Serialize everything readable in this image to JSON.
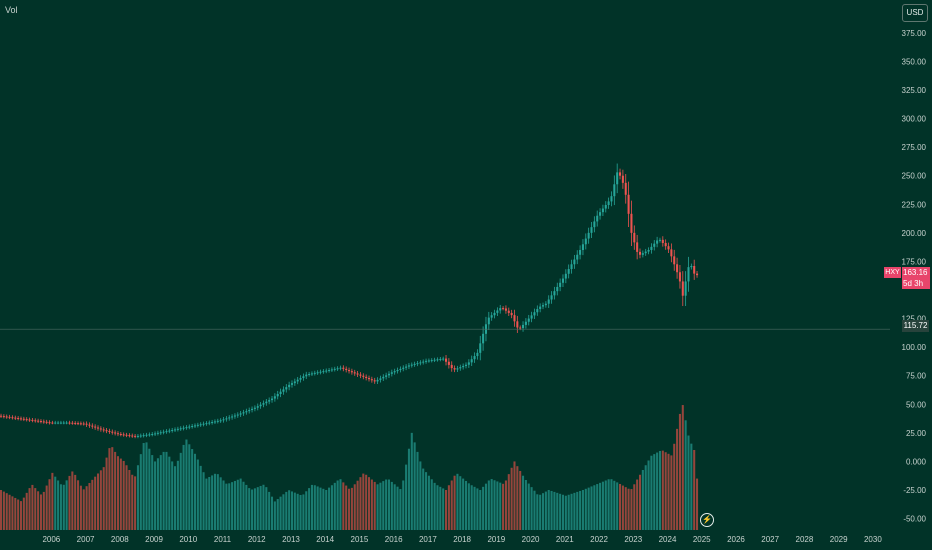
{
  "header": {
    "volume_label": "Vol",
    "currency_button": "USD"
  },
  "price_marker": {
    "symbol": "HXY",
    "price": "163.16",
    "countdown": "5d 3h"
  },
  "last_marker": {
    "value": "115.72"
  },
  "icons": {
    "replay": "lightning-icon"
  },
  "colors": {
    "background": "#013328",
    "up": "#26a69a",
    "down": "#ef5350",
    "up_volume": "#1f8a7f",
    "down_volume": "#b0493f",
    "price_marker": "#e8456b"
  },
  "chart_data": {
    "type": "candlestick",
    "title": "",
    "xlabel": "",
    "ylabel": "",
    "x_tick_labels": [
      "2006",
      "2007",
      "2008",
      "2009",
      "2010",
      "2011",
      "2012",
      "2013",
      "2014",
      "2015",
      "2016",
      "2017",
      "2018",
      "2019",
      "2020",
      "2021",
      "2022",
      "2023",
      "2024",
      "2025",
      "2026",
      "2027",
      "2028",
      "2029",
      "2030"
    ],
    "y_tick_labels": [
      "375.00",
      "350.00",
      "325.00",
      "300.00",
      "275.00",
      "250.00",
      "225.00",
      "200.00",
      "175.00",
      "125.00",
      "100.00",
      "75.00",
      "50.00",
      "25.00",
      "0.000",
      "-25.00",
      "-50.00"
    ],
    "y_range": [
      -60,
      395
    ],
    "x_range": [
      2005.0,
      2031.0
    ],
    "last_price": 163.16,
    "horizontal_line": 115.72,
    "grid": false,
    "series": [
      {
        "name": "Price",
        "points": [
          [
            2005.0,
            40
          ],
          [
            2005.5,
            38
          ],
          [
            2006.0,
            36
          ],
          [
            2006.5,
            34
          ],
          [
            2007.0,
            34
          ],
          [
            2007.5,
            33
          ],
          [
            2008.0,
            28
          ],
          [
            2008.5,
            24
          ],
          [
            2009.0,
            22
          ],
          [
            2009.5,
            24
          ],
          [
            2010.0,
            27
          ],
          [
            2010.5,
            30
          ],
          [
            2011.0,
            33
          ],
          [
            2011.5,
            36
          ],
          [
            2012.0,
            41
          ],
          [
            2012.5,
            47
          ],
          [
            2013.0,
            55
          ],
          [
            2013.5,
            67
          ],
          [
            2014.0,
            76
          ],
          [
            2014.5,
            79
          ],
          [
            2015.0,
            82
          ],
          [
            2015.5,
            76
          ],
          [
            2016.0,
            70
          ],
          [
            2016.5,
            78
          ],
          [
            2017.0,
            84
          ],
          [
            2017.5,
            88
          ],
          [
            2018.0,
            90
          ],
          [
            2018.3,
            80
          ],
          [
            2018.7,
            85
          ],
          [
            2019.0,
            95
          ],
          [
            2019.3,
            125
          ],
          [
            2019.7,
            135
          ],
          [
            2020.0,
            128
          ],
          [
            2020.2,
            115
          ],
          [
            2020.5,
            125
          ],
          [
            2020.8,
            135
          ],
          [
            2021.0,
            138
          ],
          [
            2021.5,
            160
          ],
          [
            2022.0,
            185
          ],
          [
            2022.5,
            215
          ],
          [
            2022.9,
            230
          ],
          [
            2023.1,
            255
          ],
          [
            2023.3,
            240
          ],
          [
            2023.5,
            200
          ],
          [
            2023.7,
            180
          ],
          [
            2024.0,
            185
          ],
          [
            2024.3,
            195
          ],
          [
            2024.6,
            185
          ],
          [
            2024.9,
            160
          ],
          [
            2025.0,
            145
          ],
          [
            2025.2,
            175
          ],
          [
            2025.35,
            163
          ]
        ]
      },
      {
        "name": "Volume",
        "points": [
          [
            2005.0,
            -25
          ],
          [
            2005.3,
            -30
          ],
          [
            2005.6,
            -35
          ],
          [
            2005.9,
            -20
          ],
          [
            2006.2,
            -30
          ],
          [
            2006.5,
            -10
          ],
          [
            2006.8,
            -22
          ],
          [
            2007.1,
            -8
          ],
          [
            2007.4,
            -25
          ],
          [
            2007.7,
            -15
          ],
          [
            2008.0,
            -5
          ],
          [
            2008.2,
            15
          ],
          [
            2008.4,
            5
          ],
          [
            2008.6,
            0
          ],
          [
            2008.9,
            -15
          ],
          [
            2009.2,
            20
          ],
          [
            2009.5,
            0
          ],
          [
            2009.8,
            10
          ],
          [
            2010.1,
            -5
          ],
          [
            2010.4,
            20
          ],
          [
            2010.7,
            5
          ],
          [
            2011.0,
            -15
          ],
          [
            2011.3,
            -10
          ],
          [
            2011.6,
            -20
          ],
          [
            2012.0,
            -15
          ],
          [
            2012.3,
            -25
          ],
          [
            2012.7,
            -20
          ],
          [
            2013.0,
            -35
          ],
          [
            2013.4,
            -25
          ],
          [
            2013.8,
            -30
          ],
          [
            2014.1,
            -20
          ],
          [
            2014.5,
            -25
          ],
          [
            2014.9,
            -15
          ],
          [
            2015.2,
            -25
          ],
          [
            2015.6,
            -10
          ],
          [
            2016.0,
            -20
          ],
          [
            2016.3,
            -15
          ],
          [
            2016.7,
            -25
          ],
          [
            2017.0,
            25
          ],
          [
            2017.3,
            -5
          ],
          [
            2017.7,
            -20
          ],
          [
            2018.0,
            -25
          ],
          [
            2018.3,
            -10
          ],
          [
            2018.7,
            -20
          ],
          [
            2019.0,
            -25
          ],
          [
            2019.3,
            -15
          ],
          [
            2019.7,
            -20
          ],
          [
            2020.0,
            0
          ],
          [
            2020.3,
            -15
          ],
          [
            2020.7,
            -30
          ],
          [
            2021.0,
            -25
          ],
          [
            2021.5,
            -30
          ],
          [
            2022.0,
            -25
          ],
          [
            2022.4,
            -20
          ],
          [
            2022.8,
            -15
          ],
          [
            2023.1,
            -20
          ],
          [
            2023.4,
            -25
          ],
          [
            2023.7,
            -10
          ],
          [
            2024.0,
            5
          ],
          [
            2024.3,
            10
          ],
          [
            2024.6,
            5
          ],
          [
            2024.9,
            52
          ],
          [
            2025.1,
            20
          ],
          [
            2025.25,
            10
          ],
          [
            2025.35,
            -20
          ]
        ]
      }
    ]
  }
}
